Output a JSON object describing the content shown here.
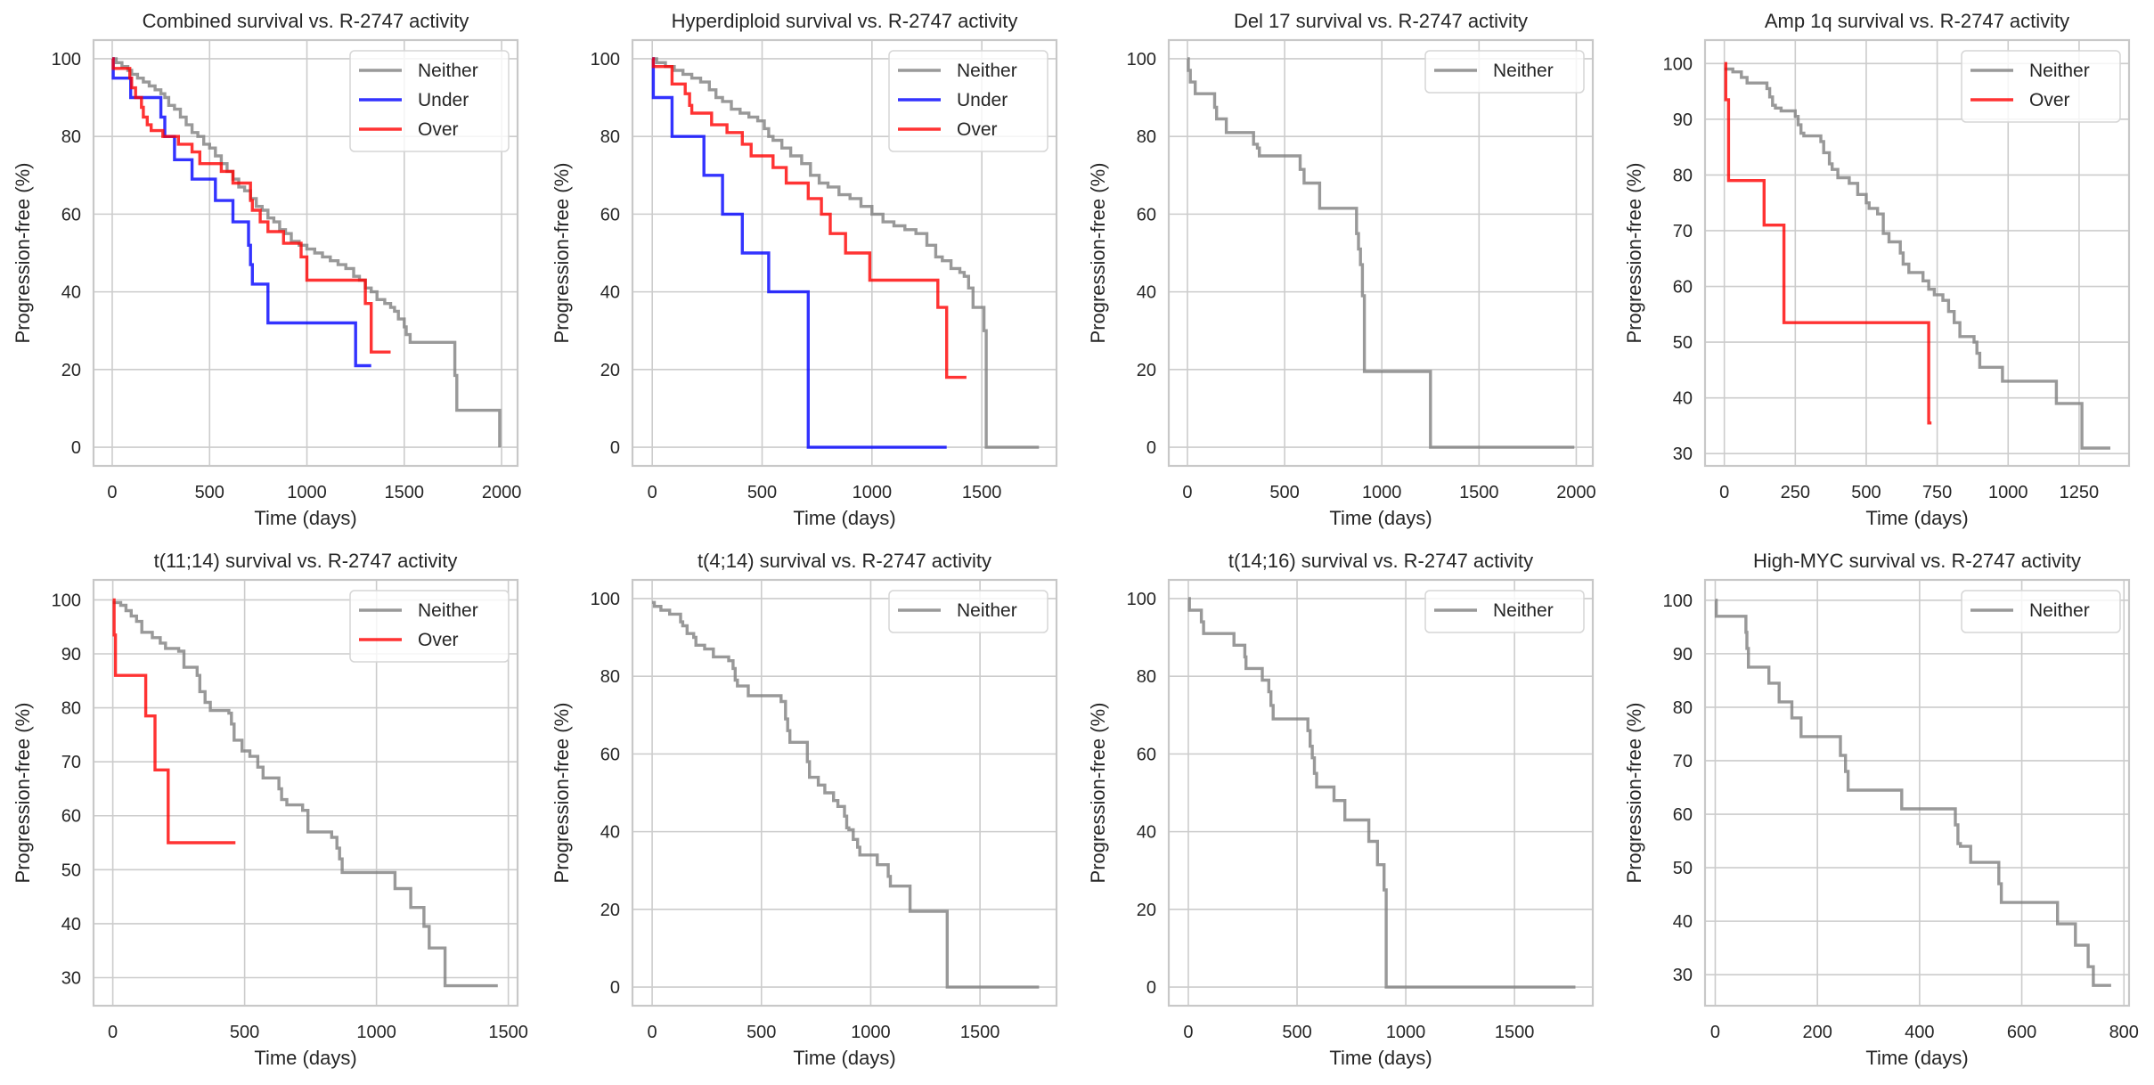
{
  "figure": {
    "colors": {
      "Neither": "#808080",
      "Under": "#0000ff",
      "Over": "#ff0000"
    }
  },
  "chart_data": [
    {
      "type": "line",
      "title": "Combined survival vs. R-2747 activity",
      "xlabel": "Time (days)",
      "ylabel": "Progression-free (%)",
      "xlim": [
        -96,
        2082
      ],
      "ylim": [
        -4.8,
        104.8
      ],
      "xticks": [
        0,
        500,
        1000,
        1500,
        2000
      ],
      "yticks": [
        0,
        20,
        40,
        60,
        80,
        100
      ],
      "grid": true,
      "legend": "top-right",
      "series": [
        {
          "name": "Neither",
          "step": true,
          "x": [
            0,
            20,
            50,
            80,
            100,
            130,
            160,
            190,
            220,
            250,
            270,
            290,
            320,
            350,
            380,
            410,
            440,
            470,
            500,
            530,
            560,
            590,
            620,
            650,
            680,
            710,
            740,
            770,
            800,
            830,
            860,
            890,
            920,
            960,
            1000,
            1040,
            1080,
            1120,
            1160,
            1200,
            1240,
            1270,
            1300,
            1330,
            1360,
            1400,
            1430,
            1450,
            1470,
            1500,
            1510,
            1530,
            1760,
            1770,
            1990
          ],
          "y": [
            100,
            99,
            98,
            97,
            96,
            95,
            94,
            93,
            92,
            91,
            90,
            88,
            87,
            85,
            83,
            81,
            80,
            78,
            77,
            75,
            73,
            71,
            69,
            67,
            66,
            64,
            62,
            61,
            59,
            58,
            56,
            55,
            53,
            52,
            51,
            50,
            49,
            48,
            47,
            46,
            44,
            43,
            41,
            40,
            38,
            37,
            36,
            35,
            33,
            31,
            29,
            27,
            18.5,
            9.5,
            0
          ]
        },
        {
          "name": "Under",
          "step": true,
          "x": [
            0,
            5,
            95,
            250,
            270,
            320,
            410,
            530,
            620,
            700,
            710,
            720,
            800,
            1250,
            1330
          ],
          "y": [
            100,
            95,
            90,
            85,
            80,
            74,
            69,
            63.5,
            58,
            52,
            47,
            42,
            32,
            21,
            21
          ]
        },
        {
          "name": "Over",
          "step": true,
          "x": [
            0,
            5,
            90,
            100,
            120,
            150,
            160,
            180,
            200,
            260,
            340,
            410,
            450,
            560,
            620,
            710,
            720,
            760,
            800,
            880,
            970,
            1000,
            1300,
            1330,
            1430
          ],
          "y": [
            100,
            97.5,
            95,
            92.5,
            90,
            87.5,
            85,
            83,
            81.5,
            80,
            78,
            76,
            73,
            71,
            68,
            63.5,
            61,
            58,
            55.5,
            52.5,
            49,
            43,
            37,
            24.5,
            24.5
          ]
        }
      ]
    },
    {
      "type": "line",
      "title": "Hyperdiploid survival vs. R-2747 activity",
      "xlabel": "Time (days)",
      "ylabel": "Progression-free (%)",
      "xlim": [
        -90,
        1840
      ],
      "ylim": [
        -4.8,
        104.8
      ],
      "xticks": [
        0,
        500,
        1000,
        1500
      ],
      "yticks": [
        0,
        20,
        40,
        60,
        80,
        100
      ],
      "grid": true,
      "legend": "top-right",
      "series": [
        {
          "name": "Neither",
          "step": true,
          "x": [
            0,
            20,
            60,
            100,
            140,
            180,
            220,
            260,
            290,
            320,
            360,
            400,
            440,
            480,
            510,
            530,
            550,
            590,
            630,
            680,
            720,
            760,
            800,
            850,
            900,
            950,
            1000,
            1050,
            1100,
            1150,
            1200,
            1250,
            1290,
            1320,
            1360,
            1400,
            1420,
            1440,
            1460,
            1510,
            1520,
            1760
          ],
          "y": [
            100,
            99,
            98,
            97,
            96,
            95,
            94,
            92,
            90,
            89,
            87,
            86,
            85,
            84,
            82,
            80,
            79,
            77,
            75,
            73,
            70,
            68,
            67,
            65,
            64,
            62,
            60,
            58,
            57,
            56,
            55,
            52,
            49,
            48,
            46,
            45,
            44,
            41,
            36,
            30,
            0,
            0
          ]
        },
        {
          "name": "Under",
          "step": true,
          "x": [
            0,
            5,
            90,
            235,
            320,
            410,
            530,
            710,
            1340
          ],
          "y": [
            100,
            90,
            80,
            70,
            60,
            50,
            40,
            0,
            0
          ]
        },
        {
          "name": "Over",
          "step": true,
          "x": [
            0,
            5,
            90,
            150,
            170,
            180,
            270,
            340,
            410,
            450,
            550,
            610,
            710,
            770,
            810,
            880,
            990,
            1300,
            1340,
            1430
          ],
          "y": [
            100,
            98,
            93.5,
            91,
            88,
            86,
            83,
            81,
            78,
            75,
            72,
            68,
            64,
            60,
            55,
            50,
            43,
            36,
            18,
            18
          ]
        }
      ]
    },
    {
      "type": "line",
      "title": "Del 17 survival vs. R-2747 activity",
      "xlabel": "Time (days)",
      "ylabel": "Progression-free (%)",
      "xlim": [
        -96,
        2085
      ],
      "ylim": [
        -4.8,
        104.8
      ],
      "xticks": [
        0,
        500,
        1000,
        1500,
        2000
      ],
      "yticks": [
        0,
        20,
        40,
        60,
        80,
        100
      ],
      "grid": true,
      "legend": "top-right",
      "series": [
        {
          "name": "Neither",
          "step": true,
          "x": [
            0,
            5,
            15,
            40,
            140,
            150,
            200,
            340,
            360,
            370,
            580,
            600,
            680,
            870,
            880,
            890,
            900,
            910,
            1250,
            1990
          ],
          "y": [
            100,
            97,
            94,
            91,
            87.5,
            84.5,
            81,
            78,
            77,
            75,
            71.5,
            68,
            61.5,
            55,
            51,
            47,
            39,
            19.5,
            0,
            0
          ]
        }
      ]
    },
    {
      "type": "line",
      "title": "Amp 1q survival vs. R-2747 activity",
      "xlabel": "Time (days)",
      "ylabel": "Progression-free (%)",
      "xlim": [
        -68,
        1426
      ],
      "ylim": [
        27.8,
        104.2
      ],
      "xticks": [
        0,
        250,
        500,
        750,
        1000,
        1250
      ],
      "yticks": [
        30,
        40,
        50,
        60,
        70,
        80,
        90,
        100
      ],
      "grid": true,
      "legend": "top-right",
      "series": [
        {
          "name": "Neither",
          "step": true,
          "x": [
            0,
            30,
            60,
            80,
            150,
            160,
            170,
            180,
            200,
            250,
            260,
            270,
            280,
            340,
            350,
            370,
            380,
            400,
            440,
            470,
            500,
            510,
            540,
            560,
            580,
            620,
            630,
            650,
            700,
            720,
            740,
            770,
            790,
            810,
            830,
            880,
            890,
            900,
            980,
            1170,
            1260,
            1360
          ],
          "y": [
            99,
            98.5,
            97.5,
            96.5,
            95.5,
            94,
            92.5,
            92,
            91.5,
            90.5,
            89,
            87.5,
            87,
            86,
            84,
            82,
            81,
            79.5,
            78.5,
            76.5,
            75,
            74,
            73,
            69.5,
            68,
            66,
            64,
            62.5,
            61,
            59.5,
            58.5,
            57.5,
            55.5,
            53.5,
            51,
            50,
            48,
            45.5,
            43,
            39,
            31,
            31
          ]
        },
        {
          "name": "Over",
          "step": true,
          "x": [
            0,
            5,
            15,
            140,
            210,
            720,
            730
          ],
          "y": [
            100,
            93.5,
            79,
            71,
            53.5,
            35.5,
            35.5
          ]
        }
      ]
    },
    {
      "type": "line",
      "title": "t(11;14) survival vs. R-2747 activity",
      "xlabel": "Time (days)",
      "ylabel": "Progression-free (%)",
      "xlim": [
        -73,
        1535
      ],
      "ylim": [
        24.8,
        103.7
      ],
      "xticks": [
        0,
        500,
        1000,
        1500
      ],
      "yticks": [
        30,
        40,
        50,
        60,
        70,
        80,
        90,
        100
      ],
      "grid": true,
      "legend": "top-right",
      "series": [
        {
          "name": "Neither",
          "step": true,
          "x": [
            0,
            30,
            50,
            70,
            90,
            110,
            150,
            180,
            200,
            250,
            270,
            320,
            330,
            350,
            370,
            440,
            450,
            460,
            490,
            520,
            550,
            570,
            630,
            640,
            660,
            720,
            740,
            830,
            850,
            860,
            870,
            1070,
            1130,
            1180,
            1200,
            1260,
            1460
          ],
          "y": [
            99.5,
            99,
            98,
            97,
            96,
            94,
            93,
            92,
            91,
            90.5,
            87.5,
            86,
            83,
            81,
            79.5,
            79,
            77,
            74,
            72,
            71,
            69,
            67,
            65,
            63,
            62,
            61,
            57,
            56,
            54,
            52,
            49.5,
            46.5,
            43,
            39.5,
            35.5,
            28.5,
            28.5
          ]
        },
        {
          "name": "Over",
          "step": true,
          "x": [
            0,
            5,
            10,
            125,
            160,
            210,
            465
          ],
          "y": [
            100,
            93.5,
            86,
            78.5,
            68.5,
            55,
            55
          ]
        }
      ]
    },
    {
      "type": "line",
      "title": "t(4;14) survival vs. R-2747 activity",
      "xlabel": "Time (days)",
      "ylabel": "Progression-free (%)",
      "xlim": [
        -90,
        1850
      ],
      "ylim": [
        -4.8,
        104.8
      ],
      "xticks": [
        0,
        500,
        1000,
        1500
      ],
      "yticks": [
        0,
        20,
        40,
        60,
        80,
        100
      ],
      "grid": true,
      "legend": "top-right",
      "series": [
        {
          "name": "Neither",
          "step": true,
          "x": [
            0,
            10,
            40,
            80,
            130,
            140,
            160,
            190,
            200,
            240,
            280,
            350,
            370,
            380,
            390,
            440,
            590,
            610,
            620,
            630,
            710,
            720,
            760,
            790,
            830,
            850,
            880,
            890,
            900,
            920,
            940,
            950,
            1030,
            1080,
            1090,
            1180,
            1350,
            1770
          ],
          "y": [
            99,
            98,
            97,
            96,
            94,
            93,
            91,
            90,
            88,
            87,
            85,
            84,
            82,
            79,
            77.5,
            75,
            73.5,
            69,
            66,
            63,
            58,
            54,
            52,
            50,
            48,
            46.5,
            44,
            41,
            40.5,
            38,
            36,
            34,
            31.5,
            28.5,
            26,
            19.5,
            0,
            0
          ]
        }
      ]
    },
    {
      "type": "line",
      "title": "t(14;16) survival vs. R-2747 activity",
      "xlabel": "Time (days)",
      "ylabel": "Progression-free (%)",
      "xlim": [
        -90,
        1860
      ],
      "ylim": [
        -4.8,
        104.8
      ],
      "xticks": [
        0,
        500,
        1000,
        1500
      ],
      "yticks": [
        0,
        20,
        40,
        60,
        80,
        100
      ],
      "grid": true,
      "legend": "top-right",
      "series": [
        {
          "name": "Neither",
          "step": true,
          "x": [
            0,
            5,
            60,
            70,
            210,
            260,
            265,
            340,
            370,
            380,
            390,
            550,
            560,
            570,
            580,
            590,
            670,
            720,
            830,
            870,
            900,
            910,
            920,
            1780
          ],
          "y": [
            100,
            97,
            94,
            91,
            88,
            85,
            82,
            79,
            76,
            72.5,
            69,
            66,
            62,
            59,
            55,
            51.5,
            48,
            43,
            37.5,
            31.5,
            25,
            0,
            0,
            0
          ]
        }
      ]
    },
    {
      "type": "line",
      "title": "High-MYC survival vs. R-2747 activity",
      "xlabel": "Time (days)",
      "ylabel": "Progression-free (%)",
      "xlim": [
        -20,
        810
      ],
      "ylim": [
        24.2,
        103.8
      ],
      "xticks": [
        0,
        200,
        400,
        600,
        800
      ],
      "yticks": [
        30,
        40,
        50,
        60,
        70,
        80,
        90,
        100
      ],
      "grid": true,
      "legend": "top-right",
      "series": [
        {
          "name": "Neither",
          "step": true,
          "x": [
            0,
            2,
            60,
            62,
            65,
            105,
            125,
            150,
            168,
            245,
            255,
            260,
            365,
            470,
            475,
            480,
            500,
            555,
            560,
            670,
            705,
            730,
            740,
            775
          ],
          "y": [
            100,
            97,
            94,
            91,
            87.5,
            84.5,
            81,
            78,
            74.5,
            71,
            68,
            64.5,
            61,
            58,
            54.5,
            54,
            51,
            47,
            43.5,
            39.5,
            35.5,
            31.5,
            28,
            28
          ]
        }
      ]
    }
  ]
}
